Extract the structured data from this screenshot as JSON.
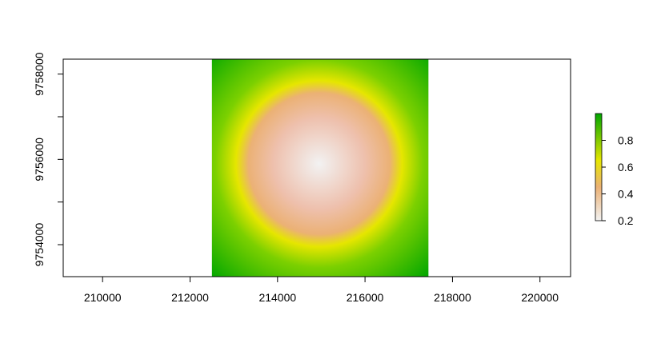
{
  "chart_data": {
    "type": "heatmap",
    "title": "",
    "xlabel": "",
    "ylabel": "",
    "xlim": [
      209100,
      220700
    ],
    "ylim": [
      9753250,
      9758350
    ],
    "x_ticks": [
      210000,
      212000,
      214000,
      216000,
      218000,
      220000
    ],
    "y_ticks": [
      9754000,
      9755000,
      9756000,
      9757000,
      9758000
    ],
    "x_tick_labels": [
      "210000",
      "212000",
      "214000",
      "216000",
      "218000",
      "220000"
    ],
    "y_tick_labels": [
      "9754000",
      "",
      "9756000",
      "",
      "9758000"
    ],
    "raster_extent": {
      "xmin": 212500,
      "xmax": 217450,
      "ymin": 9753250,
      "ymax": 9758350
    },
    "raster_center": [
      214950,
      9755900
    ],
    "value_range": [
      0.2,
      1.0
    ],
    "description_values": {
      "center_value": 0.2,
      "value_at_radius_1900": 0.7,
      "corner_value": 1.0
    },
    "legend": {
      "position": "right",
      "ticks": [
        0.2,
        0.4,
        0.6,
        0.8
      ],
      "tick_labels": [
        "0.2",
        "0.4",
        "0.6",
        "0.8"
      ],
      "min": 0.2,
      "max": 1.0
    },
    "colors": {
      "low": "#f2f2f2",
      "mid_low": "#ebb175",
      "mid": "#e6e600",
      "high": "#00a600"
    },
    "grid": false
  }
}
